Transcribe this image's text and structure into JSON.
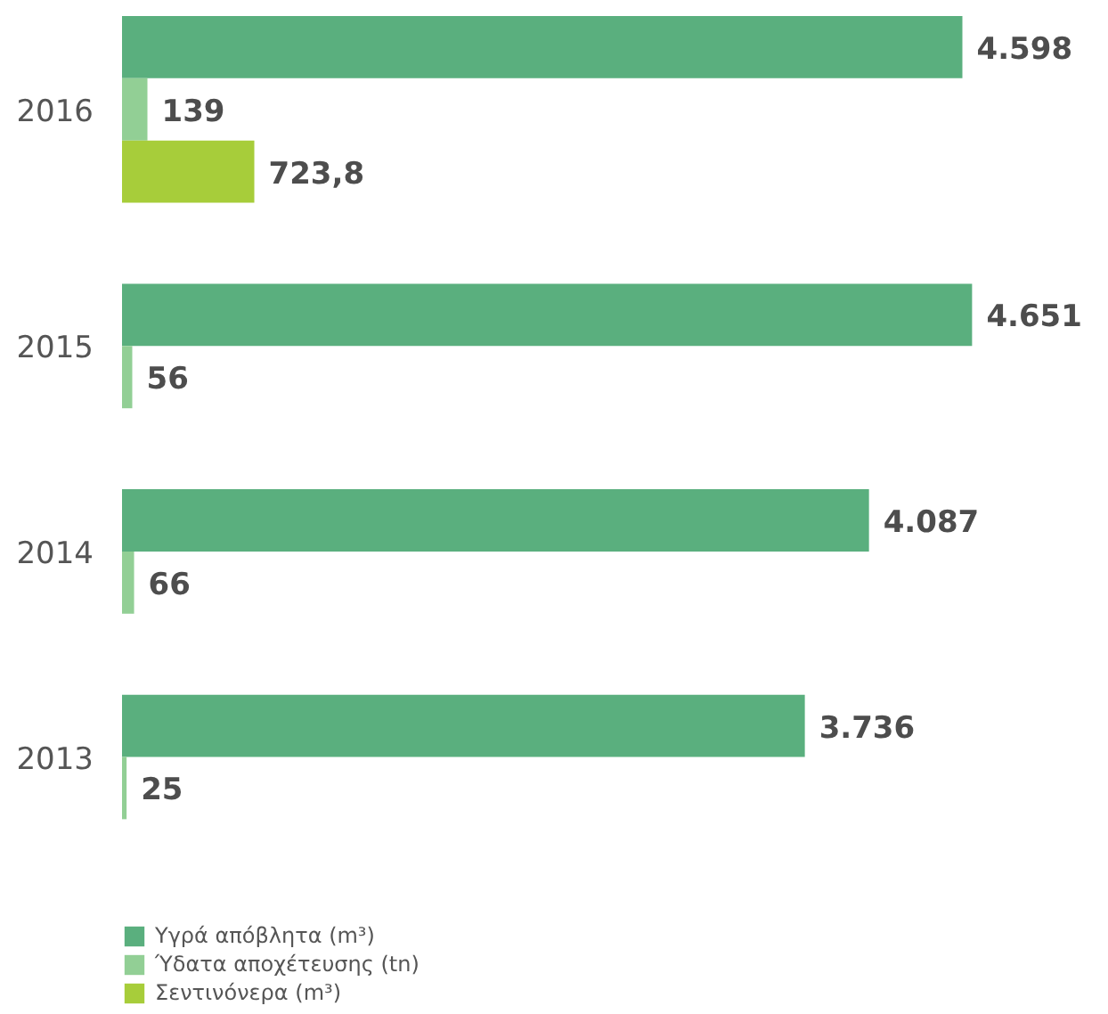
{
  "chart_data": {
    "type": "bar",
    "orientation": "horizontal",
    "categories": [
      "2016",
      "2015",
      "2014",
      "2013"
    ],
    "series": [
      {
        "name": "Υγρά απόβλητα (m³)",
        "color": "#5aaf7e",
        "values": [
          4598,
          4651,
          4087,
          3736
        ],
        "value_labels": [
          "4.598",
          "4.651",
          "4.087",
          "3.736"
        ]
      },
      {
        "name": "Ύδατα αποχέτευσης (tn)",
        "color": "#92cf95",
        "values": [
          139,
          56,
          66,
          25
        ],
        "value_labels": [
          "139",
          "56",
          "66",
          "25"
        ]
      },
      {
        "name": "Σεντινόνερα (m³)",
        "color": "#a7cd3a",
        "values": [
          723.8,
          null,
          null,
          null
        ],
        "value_labels": [
          "723,8",
          null,
          null,
          null
        ]
      }
    ],
    "legend": "bottom left"
  }
}
